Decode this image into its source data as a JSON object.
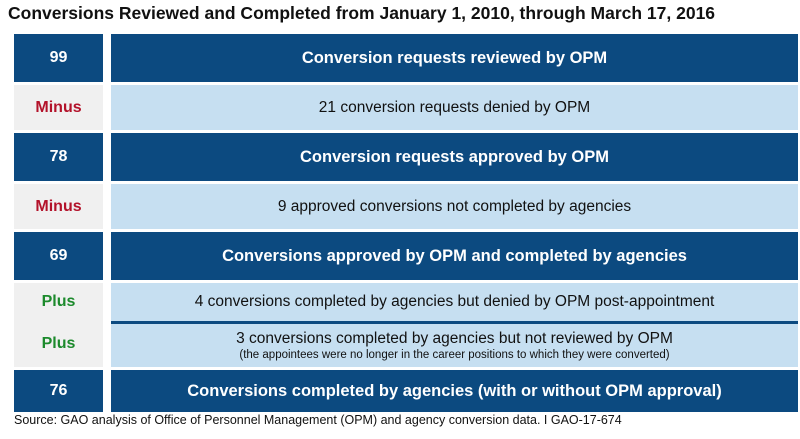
{
  "title": "Conversions Reviewed and Completed from January 1, 2010, through March 17, 2016",
  "rows": [
    {
      "type": "total",
      "left": "99",
      "text": "Conversion requests reviewed by OPM"
    },
    {
      "type": "minus",
      "left": "Minus",
      "text": "21 conversion requests denied by OPM"
    },
    {
      "type": "total",
      "left": "78",
      "text": "Conversion requests approved by OPM"
    },
    {
      "type": "minus",
      "left": "Minus",
      "text": "9  approved conversions not completed by agencies"
    },
    {
      "type": "total",
      "left": "69",
      "text": "Conversions approved by OPM and completed by agencies"
    },
    {
      "type": "plus",
      "left": "Plus",
      "text": "4 conversions completed by agencies but denied by OPM post-appointment"
    },
    {
      "type": "plus",
      "left": "Plus",
      "text": "3 conversions completed by agencies but not reviewed by OPM",
      "subtext": "(the appointees were no longer in the career positions to which they were converted)"
    },
    {
      "type": "total",
      "left": "76",
      "text": "Conversions completed by agencies (with or without OPM approval)"
    }
  ],
  "source": "Source: GAO analysis of Office of Personnel Management (OPM) and agency conversion data.  I  GAO-17-674",
  "colors": {
    "dark_blue": "#0c4a80",
    "light_blue": "#c6dff1",
    "minus_red": "#b3122a",
    "plus_green": "#1c8a2c"
  }
}
